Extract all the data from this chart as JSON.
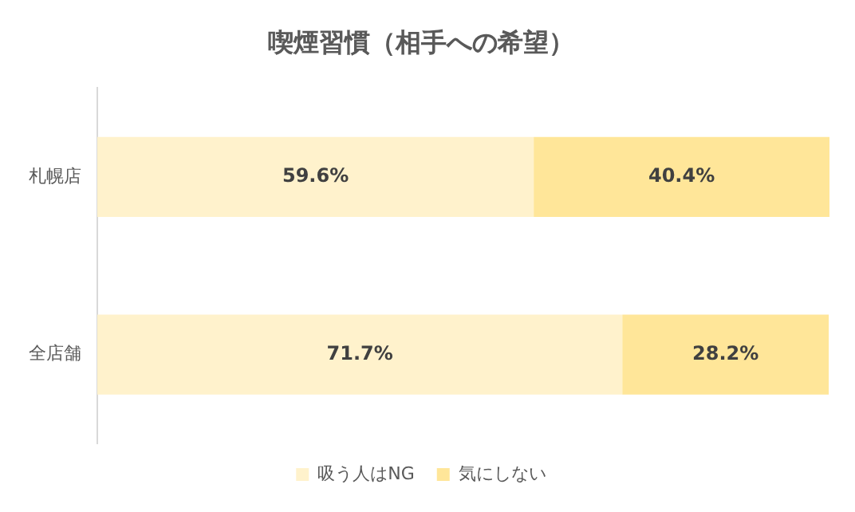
{
  "chart_data": {
    "type": "bar",
    "orientation": "horizontal",
    "stacked": true,
    "title": "喫煙習慣（相手への希望）",
    "categories": [
      "札幌店",
      "全店舗"
    ],
    "series": [
      {
        "name": "吸う人はNG",
        "color": "#fff2cc",
        "values": [
          59.6,
          71.7
        ],
        "value_labels": [
          "59.6%",
          "71.7%"
        ]
      },
      {
        "name": "気にしない",
        "color": "#ffe699",
        "values": [
          40.4,
          28.2
        ],
        "value_labels": [
          "40.4%",
          "28.2%"
        ]
      }
    ],
    "legend": "bottom"
  }
}
